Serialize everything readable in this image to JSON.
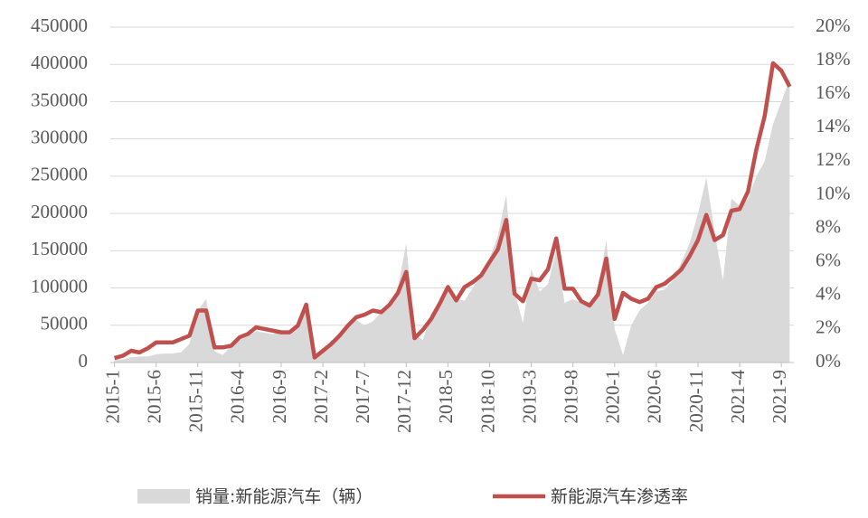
{
  "chart_data": {
    "type": "area-line",
    "categories": [
      "2015-1",
      null,
      null,
      null,
      null,
      "2015-6",
      null,
      null,
      null,
      null,
      "2015-11",
      null,
      null,
      null,
      null,
      "2016-4",
      null,
      null,
      null,
      null,
      "2016-9",
      null,
      null,
      null,
      null,
      "2017-2",
      null,
      null,
      null,
      null,
      "2017-7",
      null,
      null,
      null,
      null,
      "2017-12",
      null,
      null,
      null,
      null,
      "2018-5",
      null,
      null,
      null,
      null,
      "2018-10",
      null,
      null,
      null,
      null,
      "2019-3",
      null,
      null,
      null,
      null,
      "2019-8",
      null,
      null,
      null,
      null,
      "2020-1",
      null,
      null,
      null,
      null,
      "2020-6",
      null,
      null,
      null,
      null,
      "2020-11",
      null,
      null,
      null,
      null,
      "2021-4",
      null,
      null,
      null,
      null,
      "2021-9",
      null
    ],
    "series": [
      {
        "name": "销量:新能源汽车（辆）",
        "color": "#d9d9d9",
        "kind": "area",
        "values": [
          5000,
          4000,
          7000,
          8000,
          8000,
          11000,
          12000,
          12000,
          14000,
          25000,
          70000,
          85000,
          15000,
          10000,
          22000,
          30000,
          35000,
          42000,
          40000,
          38000,
          42000,
          40000,
          50000,
          72000,
          6000,
          15000,
          30000,
          32000,
          46000,
          57000,
          50000,
          55000,
          68000,
          76000,
          100000,
          160000,
          38000,
          30000,
          66000,
          82000,
          100000,
          85000,
          83000,
          100000,
          120000,
          140000,
          170000,
          225000,
          95000,
          53000,
          125000,
          95000,
          105000,
          150000,
          80000,
          85000,
          80000,
          75000,
          95000,
          165000,
          45000,
          10000,
          50000,
          70000,
          80000,
          95000,
          98000,
          110000,
          135000,
          160000,
          200000,
          248000,
          175000,
          110000,
          220000,
          210000,
          220000,
          250000,
          270000,
          320000,
          350000,
          380000
        ]
      },
      {
        "name": "新能源汽车渗透率",
        "color": "#c0504d",
        "kind": "line",
        "axis": "y2",
        "values": [
          0.27,
          0.4,
          0.7,
          0.6,
          0.85,
          1.2,
          1.2,
          1.2,
          1.4,
          1.6,
          3.1,
          3.1,
          0.9,
          0.9,
          1.0,
          1.5,
          1.7,
          2.1,
          2.0,
          1.9,
          1.8,
          1.8,
          2.2,
          3.45,
          0.3,
          0.7,
          1.1,
          1.6,
          2.2,
          2.7,
          2.85,
          3.1,
          3.0,
          3.45,
          4.15,
          5.4,
          1.45,
          1.95,
          2.6,
          3.5,
          4.5,
          3.7,
          4.5,
          4.8,
          5.2,
          6.0,
          6.75,
          8.5,
          4.1,
          3.65,
          5.0,
          4.9,
          5.55,
          7.4,
          4.4,
          4.4,
          3.65,
          3.4,
          4.05,
          6.2,
          2.6,
          4.15,
          3.8,
          3.6,
          3.8,
          4.5,
          4.7,
          5.1,
          5.55,
          6.35,
          7.3,
          8.8,
          7.3,
          7.6,
          9.05,
          9.15,
          10.2,
          12.7,
          14.7,
          17.85,
          17.4,
          16.45
        ]
      }
    ],
    "ylim": [
      0,
      450000
    ],
    "yticks": [
      0,
      50000,
      100000,
      150000,
      200000,
      250000,
      300000,
      350000,
      400000,
      450000
    ],
    "y2lim": [
      0,
      20
    ],
    "y2ticks": [
      {
        "value": 0,
        "label": "0%"
      },
      {
        "value": 2,
        "label": "2%"
      },
      {
        "value": 4,
        "label": "4%"
      },
      {
        "value": 6,
        "label": "6%"
      },
      {
        "value": 8,
        "label": "8%"
      },
      {
        "value": 10,
        "label": "10%"
      },
      {
        "value": 12,
        "label": "12%"
      },
      {
        "value": 14,
        "label": "14%"
      },
      {
        "value": 16,
        "label": "16%"
      },
      {
        "value": 18,
        "label": "18%"
      },
      {
        "value": 20,
        "label": "20%"
      }
    ],
    "grid": true
  }
}
